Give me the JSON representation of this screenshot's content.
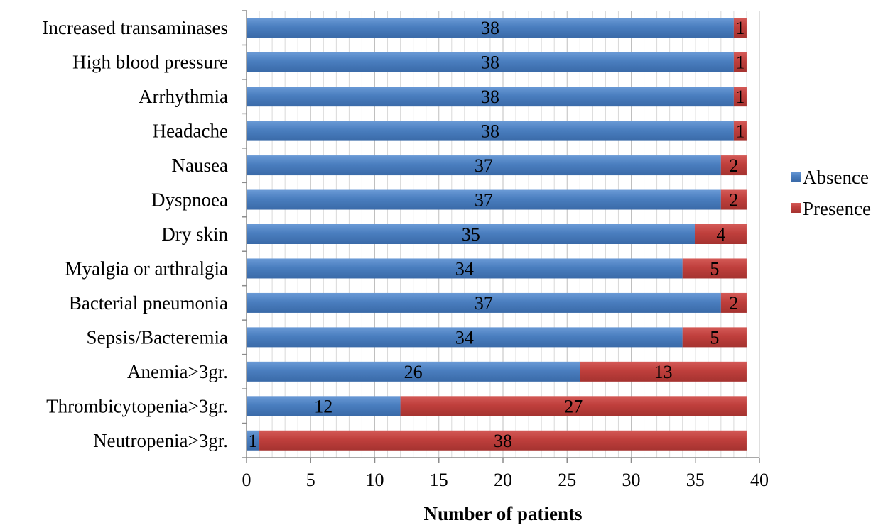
{
  "chart_data": {
    "type": "bar",
    "orientation": "horizontal",
    "stacked": true,
    "categories": [
      "Increased transaminases",
      "High blood pressure",
      "Arrhythmia",
      "Headache",
      "Nausea",
      "Dyspnoea",
      "Dry skin",
      "Myalgia or arthralgia",
      "Bacterial pneumonia",
      "Sepsis/Bacteremia",
      "Anemia>3gr.",
      "Thrombicytopenia>3gr.",
      "Neutropenia>3gr."
    ],
    "series": [
      {
        "name": "Absence",
        "color": "#4a7ebf",
        "values": [
          38,
          38,
          38,
          38,
          37,
          37,
          35,
          34,
          37,
          34,
          26,
          12,
          1
        ]
      },
      {
        "name": "Presence",
        "color": "#bf3f3c",
        "values": [
          1,
          1,
          1,
          1,
          2,
          2,
          4,
          5,
          2,
          5,
          13,
          27,
          38
        ]
      }
    ],
    "xlabel": "Number of patients",
    "ylabel": "",
    "xlim": [
      0,
      40
    ],
    "x_ticks": [
      0,
      5,
      10,
      15,
      20,
      25,
      30,
      35,
      40
    ],
    "grid": true,
    "legend_position": "right"
  }
}
